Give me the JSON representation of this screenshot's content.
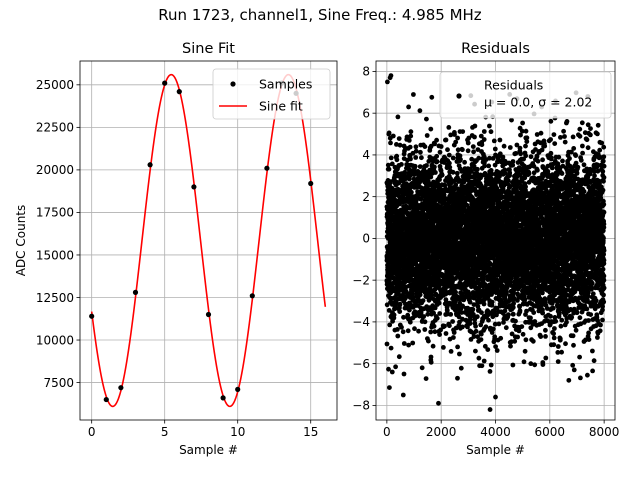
{
  "figure": {
    "suptitle": "Run 1723, channel1, Sine Freq.: 4.985 MHz"
  },
  "chart_data": [
    {
      "type": "line",
      "title": "Sine Fit",
      "xlabel": "Sample #",
      "ylabel": "ADC Counts",
      "xlim": [
        -0.8,
        16.8
      ],
      "ylim": [
        5300,
        26400
      ],
      "xticks": [
        0,
        5,
        10,
        15
      ],
      "yticks": [
        7500,
        10000,
        12500,
        15000,
        17500,
        20000,
        22500,
        25000
      ],
      "xtick_labels": [
        "0",
        "5",
        "10",
        "15"
      ],
      "ytick_labels": [
        "7500",
        "10000",
        "12500",
        "15000",
        "17500",
        "20000",
        "22500",
        "25000"
      ],
      "grid": true,
      "legend": {
        "placement": "top-right",
        "entries": [
          "Samples",
          "Sine fit"
        ]
      },
      "series": [
        {
          "name": "Samples",
          "kind": "scatter",
          "color": "#000000",
          "x": [
            0,
            1,
            2,
            3,
            4,
            5,
            6,
            7,
            8,
            9,
            10,
            11,
            12,
            13,
            14,
            15
          ],
          "y": [
            11400,
            6500,
            7200,
            12800,
            20300,
            25100,
            24600,
            19000,
            11500,
            6600,
            7100,
            12600,
            20100,
            25100,
            24500,
            19200
          ]
        },
        {
          "name": "Sine fit",
          "kind": "line",
          "color": "#ff0000",
          "model": {
            "offset": 15850,
            "amplitude": 9750,
            "period": 8.02,
            "x_at_peak": 5.45,
            "x_range": [
              0,
              16
            ]
          }
        }
      ]
    },
    {
      "type": "scatter",
      "title": "Residuals",
      "xlabel": "Sample #",
      "ylabel": "",
      "xlim": [
        -400,
        8400
      ],
      "ylim": [
        -8.7,
        8.5
      ],
      "xticks": [
        0,
        2000,
        4000,
        6000,
        8000
      ],
      "yticks": [
        -8,
        -6,
        -4,
        -2,
        0,
        2,
        4,
        6,
        8
      ],
      "xtick_labels": [
        "0",
        "2000",
        "4000",
        "6000",
        "8000"
      ],
      "ytick_labels": [
        "−8",
        "−6",
        "−4",
        "−2",
        "0",
        "2",
        "4",
        "6",
        "8"
      ],
      "grid": true,
      "legend": {
        "placement": "top-right",
        "entries": [
          "Residuals",
          "μ = 0.0, σ = 2.02"
        ]
      },
      "mean": 0.0,
      "std": 2.02,
      "n_points": 8000,
      "color": "#000000",
      "outliers": [
        {
          "x": 150,
          "y": 7.8
        },
        {
          "x": 120,
          "y": 7.7
        },
        {
          "x": 800,
          "y": 6.3
        },
        {
          "x": 1900,
          "y": -7.9
        },
        {
          "x": 3800,
          "y": -8.2
        },
        {
          "x": 4000,
          "y": -7.6
        },
        {
          "x": 200,
          "y": -6.4
        },
        {
          "x": 2600,
          "y": -6.7
        },
        {
          "x": 6700,
          "y": -6.8
        },
        {
          "x": 1300,
          "y": -6.2
        },
        {
          "x": 6900,
          "y": -6.3
        },
        {
          "x": 7400,
          "y": 6.8
        },
        {
          "x": 5700,
          "y": 6.3
        },
        {
          "x": 3500,
          "y": -6.1
        },
        {
          "x": 5300,
          "y": -6.0
        }
      ]
    }
  ]
}
